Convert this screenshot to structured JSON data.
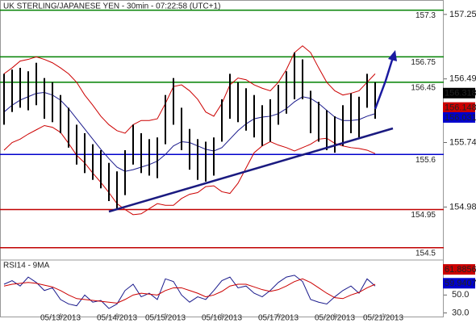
{
  "chart_data": {
    "type": "ohlc",
    "title": "UK STERLING/JAPANESE YEN - 30min - 07:22:58 (UTC+1)",
    "categories": [
      null,
      null,
      null,
      null,
      null,
      null,
      null,
      "05/13/2013",
      null,
      null,
      null,
      null,
      null,
      null,
      "05/14/2013",
      null,
      null,
      null,
      null,
      null,
      "05/15/2013",
      null,
      null,
      null,
      null,
      null,
      null,
      "05/16/2013",
      null,
      null,
      null,
      null,
      null,
      null,
      "05/17/2013",
      null,
      null,
      null,
      null,
      null,
      null,
      "05/20/2013",
      null,
      null,
      null,
      null,
      null,
      "05/21/2013"
    ],
    "high": [
      156.55,
      156.6,
      156.62,
      156.58,
      156.68,
      156.5,
      156.45,
      156.3,
      156.15,
      155.95,
      155.85,
      155.72,
      155.65,
      155.5,
      155.4,
      155.65,
      155.95,
      155.85,
      155.78,
      155.8,
      156.3,
      156.5,
      156.15,
      155.9,
      155.78,
      155.75,
      155.8,
      156.25,
      156.55,
      156.45,
      156.38,
      156.3,
      156.18,
      156.25,
      156.42,
      156.58,
      156.8,
      156.72,
      156.35,
      156.22,
      156.12,
      156.05,
      156.18,
      156.32,
      156.28,
      156.55,
      156.45,
      null
    ],
    "low": [
      155.95,
      156.1,
      156.15,
      156.12,
      156.18,
      156.02,
      155.98,
      155.85,
      155.68,
      155.48,
      155.38,
      155.3,
      155.2,
      155.05,
      154.95,
      155.12,
      155.48,
      155.38,
      155.35,
      155.32,
      155.72,
      155.95,
      155.65,
      155.42,
      155.3,
      155.28,
      155.35,
      155.75,
      156.02,
      155.98,
      155.88,
      155.8,
      155.7,
      155.75,
      155.95,
      156.08,
      156.25,
      156.25,
      155.85,
      155.75,
      155.65,
      155.62,
      155.7,
      155.85,
      155.8,
      156.15,
      156.02,
      null
    ],
    "lines": [
      {
        "color": "#1a1a8c",
        "values": [
          156.1,
          156.18,
          156.24,
          156.28,
          156.32,
          156.33,
          156.3,
          156.24,
          156.14,
          156.02,
          155.9,
          155.78,
          155.66,
          155.55,
          155.45,
          155.4,
          155.42,
          155.45,
          155.48,
          155.52,
          155.6,
          155.7,
          155.75,
          155.74,
          155.7,
          155.66,
          155.64,
          155.68,
          155.78,
          155.88,
          155.96,
          156.02,
          156.04,
          156.05,
          156.08,
          156.14,
          156.22,
          156.28,
          156.26,
          156.2,
          156.12,
          156.04,
          156.0,
          156.0,
          156.01,
          156.05,
          156.08,
          null
        ]
      },
      {
        "color": "#cc0000",
        "values": [
          156.55,
          156.62,
          156.7,
          156.72,
          156.75,
          156.72,
          156.68,
          156.62,
          156.55,
          156.45,
          156.3,
          156.18,
          156.05,
          155.95,
          155.88,
          155.85,
          155.95,
          156.0,
          156.0,
          156.02,
          156.2,
          156.4,
          156.42,
          156.35,
          156.25,
          156.1,
          156.05,
          156.2,
          156.42,
          156.5,
          156.48,
          156.42,
          156.38,
          156.35,
          156.45,
          156.6,
          156.8,
          156.88,
          156.8,
          156.62,
          156.45,
          156.35,
          156.3,
          156.32,
          156.35,
          156.45,
          156.55,
          null
        ]
      },
      {
        "color": "#cc0000",
        "values": [
          155.65,
          155.74,
          155.78,
          155.84,
          155.89,
          155.94,
          155.92,
          155.86,
          155.73,
          155.59,
          155.5,
          155.38,
          155.27,
          155.15,
          155.02,
          154.95,
          154.89,
          154.9,
          154.96,
          155.02,
          155.0,
          155.0,
          155.08,
          155.13,
          155.15,
          155.22,
          155.23,
          155.16,
          155.14,
          155.26,
          155.44,
          155.62,
          155.7,
          155.75,
          155.71,
          155.68,
          155.64,
          155.68,
          155.72,
          155.78,
          155.79,
          155.73,
          155.7,
          155.68,
          155.67,
          155.65,
          155.61,
          null
        ]
      }
    ],
    "ylim": [
      154.26,
      157.42
    ],
    "yticks": [
      157.25,
      156.49,
      155.74,
      154.98
    ],
    "levels": [
      {
        "value": 157.3,
        "color": "#008000"
      },
      {
        "value": 156.75,
        "color": "#008000"
      },
      {
        "value": 156.45,
        "color": "#008000"
      },
      {
        "value": 155.6,
        "color": "#0000cd"
      },
      {
        "value": 154.95,
        "color": "#c00000"
      },
      {
        "value": 154.5,
        "color": "#c00000"
      }
    ],
    "price_markers": [
      {
        "value": 156.318,
        "color": "#000000"
      },
      {
        "value": 156.148,
        "color": "#cc0000"
      },
      {
        "value": 156.031,
        "color": "#0000cd"
      }
    ],
    "rsi": {
      "title": "RSI14 - 9MA",
      "ylim": [
        26,
        89
      ],
      "yticks": [
        {
          "value": 50,
          "label": "50.0"
        },
        {
          "value": 30,
          "label": "30.0"
        }
      ],
      "series": [
        {
          "color": "#1a1a8c",
          "values": [
            62,
            66,
            60,
            70,
            64,
            55,
            58,
            45,
            40,
            38,
            50,
            42,
            44,
            35,
            40,
            55,
            62,
            48,
            52,
            45,
            68,
            65,
            50,
            42,
            48,
            45,
            55,
            66,
            70,
            58,
            60,
            52,
            48,
            55,
            64,
            70,
            72,
            65,
            45,
            42,
            40,
            48,
            55,
            60,
            52,
            68,
            60,
            null
          ]
        },
        {
          "color": "#cc0000",
          "values": [
            60,
            62,
            63,
            64,
            63,
            61,
            59,
            55,
            50,
            46,
            45,
            44,
            43,
            42,
            41,
            45,
            50,
            52,
            51,
            50,
            55,
            58,
            58,
            55,
            52,
            48,
            50,
            54,
            60,
            62,
            62,
            59,
            56,
            54,
            56,
            60,
            65,
            68,
            64,
            58,
            52,
            47,
            46,
            50,
            53,
            58,
            62,
            null
          ]
        }
      ],
      "markers": [
        {
          "value": 61.8856,
          "color": "#cc0000"
        },
        {
          "value": 59.9407,
          "color": "#0000cd"
        }
      ]
    }
  }
}
